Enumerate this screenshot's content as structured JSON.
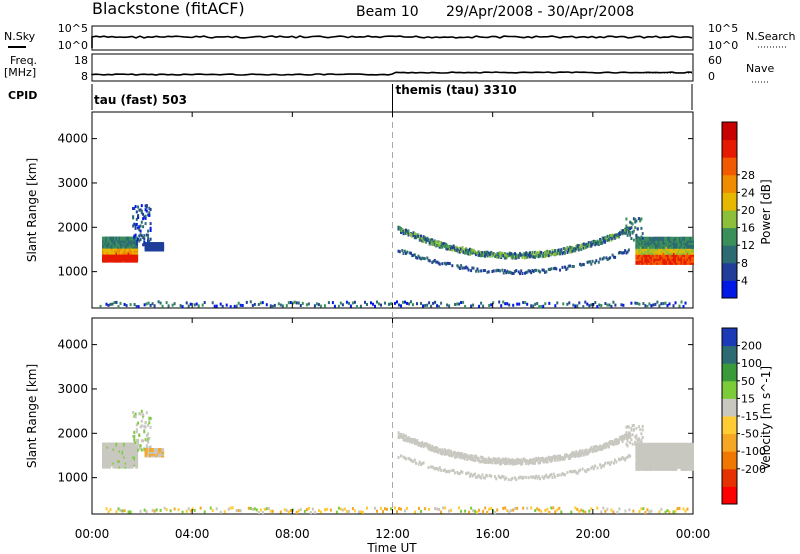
{
  "header": {
    "radar": "Blackstone (fitACF)",
    "beam": "Beam 10",
    "dates": "29/Apr/2008 - 30/Apr/2008"
  },
  "noise_panel": {
    "left_label": "N.Sky",
    "right_label": "N.Search",
    "left_ticks": [
      "10^5",
      "10^0"
    ],
    "right_ticks": [
      "10^5",
      "10^0"
    ]
  },
  "freq_panel": {
    "left_label_1": "Freq.",
    "left_label_2": "[MHz]",
    "right_label": "Nave",
    "left_ticks": [
      "18",
      "8"
    ],
    "right_ticks": [
      "60",
      "0"
    ]
  },
  "cpid_panel": {
    "label": "CPID",
    "modes": [
      {
        "name": "tau (fast) 503",
        "start_hour": 0
      },
      {
        "name": "themis (tau) 3310",
        "start_hour": 12
      }
    ]
  },
  "axes": {
    "ylabel": "Slant Range [km]",
    "xlabel": "Time UT",
    "y_ticks": [
      "1000",
      "2000",
      "3000",
      "4000"
    ],
    "x_ticks": [
      "00:00",
      "04:00",
      "08:00",
      "12:00",
      "16:00",
      "20:00",
      "00:00"
    ]
  },
  "chart_data": [
    {
      "type": "heatmap",
      "title": "Power",
      "x_range_hours": [
        0,
        24
      ],
      "y_range_km": [
        180,
        4600
      ],
      "colorbar": {
        "label": "Power [dB]",
        "ticks": [
          "4",
          "8",
          "12",
          "16",
          "20",
          "24",
          "28"
        ],
        "range": [
          0,
          30
        ],
        "colors": [
          "#0019e6",
          "#1f3d99",
          "#2d6b73",
          "#3a8f5a",
          "#8cbf3a",
          "#e6b800",
          "#f08c00",
          "#f25a00",
          "#e61a00",
          "#c80000"
        ]
      },
      "features": [
        {
          "name": "morning echo band",
          "t": [
            0.4,
            1.7
          ],
          "range_km": [
            1200,
            1750
          ],
          "power_db": [
            8,
            28
          ]
        },
        {
          "name": "evening-night arc",
          "t": [
            12.2,
            21.5
          ],
          "range_km": [
            1100,
            1800
          ],
          "power_db": [
            4,
            16
          ]
        },
        {
          "name": "late echo band",
          "t": [
            21.6,
            23.9
          ],
          "range_km": [
            1200,
            1750
          ],
          "power_db": [
            8,
            24
          ]
        },
        {
          "name": "near-range ground scatter",
          "t": [
            0,
            24
          ],
          "range_km": [
            200,
            300
          ],
          "power_db": [
            4,
            12
          ]
        }
      ]
    },
    {
      "type": "heatmap",
      "title": "Velocity",
      "x_range_hours": [
        0,
        24
      ],
      "y_range_km": [
        180,
        4600
      ],
      "colorbar": {
        "label": "Velocity [m s^-1]",
        "ticks": [
          "200",
          "100",
          "50",
          "15",
          "-15",
          "-50",
          "-100",
          "-200"
        ],
        "range": [
          -250,
          250
        ],
        "colors": [
          "#1a3ab8",
          "#2d6b73",
          "#3a9a3a",
          "#7ccc3a",
          "#c8c8c0",
          "#ffcc33",
          "#f5a623",
          "#f07800",
          "#e63200",
          "#ff0000"
        ]
      },
      "features": [
        {
          "name": "morning echo band",
          "t": [
            0.4,
            1.7
          ],
          "range_km": [
            1200,
            1750
          ],
          "velocity_ms": [
            -15,
            15
          ]
        },
        {
          "name": "evening-night arc",
          "t": [
            12.2,
            21.5
          ],
          "range_km": [
            1100,
            1800
          ],
          "velocity_ms": [
            -15,
            15
          ]
        },
        {
          "name": "late echo band",
          "t": [
            21.6,
            23.9
          ],
          "range_km": [
            1200,
            1750
          ],
          "velocity_ms": [
            -15,
            15
          ]
        },
        {
          "name": "near-range scatter",
          "t": [
            0,
            24
          ],
          "range_km": [
            200,
            300
          ],
          "velocity_ms": [
            -50,
            15
          ]
        }
      ]
    }
  ]
}
